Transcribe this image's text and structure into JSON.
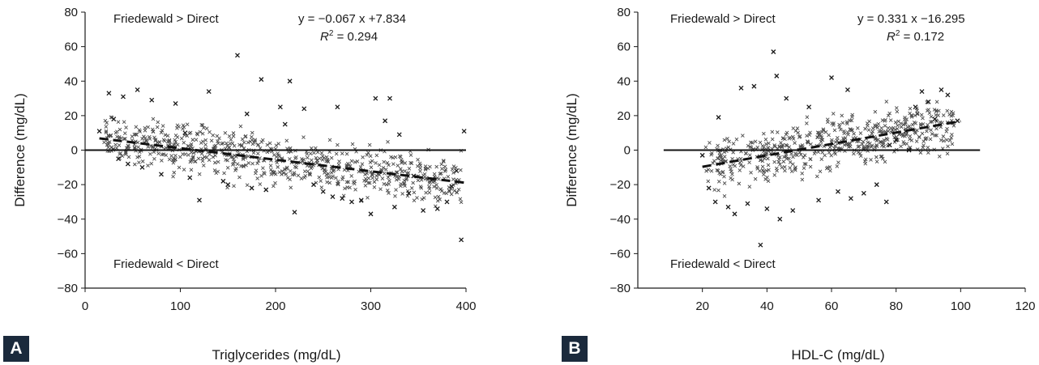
{
  "chart_data": [
    {
      "panel_label": "A",
      "type": "scatter",
      "xlabel": "Triglycerides (mg/dL)",
      "ylabel": "Difference (mg/dL)",
      "xlim": [
        0,
        400
      ],
      "ylim": [
        -80,
        80
      ],
      "xticks": [
        "0",
        "100",
        "200",
        "300",
        "400"
      ],
      "yticks": [
        "80",
        "60",
        "40",
        "20",
        "0",
        "−20",
        "−40",
        "−60",
        "−80"
      ],
      "annotations": {
        "upper": "Friedewald > Direct",
        "lower": "Friedewald < Direct",
        "equation": "y = −0.067 x +7.834",
        "r2_symbol": "R",
        "r2_exp": "2",
        "r2_value": " = 0.294"
      },
      "trendline": {
        "style": "dashed",
        "slope": -0.067,
        "intercept": 7.834,
        "x_range": [
          15,
          400
        ]
      },
      "reference_line": {
        "y": 0
      },
      "points_x": [
        160,
        185,
        215,
        305,
        265,
        55,
        25,
        40,
        70,
        95,
        130,
        205,
        320,
        230,
        170,
        398,
        330,
        315,
        210,
        105,
        250,
        280,
        355,
        370,
        385,
        395,
        120,
        60,
        45,
        35,
        15,
        150,
        145,
        175,
        190,
        240,
        290,
        340,
        300,
        260,
        220,
        110,
        80,
        30,
        380,
        390,
        365,
        345,
        325,
        270
      ],
      "points_y": [
        55,
        41,
        40,
        30,
        25,
        35,
        33,
        31,
        29,
        27,
        34,
        25,
        30,
        24,
        21,
        11,
        9,
        17,
        15,
        10,
        -24,
        -30,
        -35,
        -34,
        -21,
        -52,
        -29,
        -10,
        -8,
        -5,
        11,
        -20,
        -18,
        -22,
        -23,
        -20,
        -29,
        -25,
        -37,
        -27,
        -36,
        -16,
        -14,
        18,
        -30,
        -12,
        -17,
        -15,
        -33,
        -28
      ],
      "cloud": {
        "x_range": [
          20,
          395
        ],
        "band_halfwidth": 17,
        "count": 720
      }
    },
    {
      "panel_label": "B",
      "type": "scatter",
      "xlabel": "HDL-C (mg/dL)",
      "ylabel": "Difference (mg/dL)",
      "xlim": [
        0,
        120
      ],
      "ylim": [
        -80,
        80
      ],
      "xticks": [
        "20",
        "40",
        "60",
        "80",
        "100",
        "120"
      ],
      "yticks": [
        "80",
        "60",
        "40",
        "20",
        "0",
        "−20",
        "−40",
        "−60",
        "−80"
      ],
      "annotations": {
        "upper": "Friedewald > Direct",
        "lower": "Friedewald < Direct",
        "equation": "y = 0.331 x −16.295",
        "r2_symbol": "R",
        "r2_exp": "2",
        "r2_value": " = 0.172"
      },
      "trendline": {
        "style": "dashed",
        "slope": 0.331,
        "intercept": -16.295,
        "x_range": [
          20,
          100
        ]
      },
      "reference_line": {
        "y": 0
      },
      "points_x": [
        42,
        43,
        60,
        65,
        32,
        36,
        46,
        53,
        88,
        94,
        96,
        90,
        99,
        86,
        83,
        78,
        20,
        22,
        24,
        38,
        44,
        30,
        34,
        40,
        56,
        62,
        70,
        77,
        74,
        28,
        48,
        66,
        84,
        92,
        25,
        80
      ],
      "points_y": [
        57,
        43,
        42,
        35,
        36,
        37,
        30,
        25,
        34,
        35,
        32,
        28,
        17,
        25,
        11,
        3,
        -3,
        -22,
        -30,
        -55,
        -40,
        -37,
        -31,
        -34,
        -29,
        -24,
        -25,
        -30,
        -20,
        -33,
        -35,
        -28,
        0,
        18,
        19,
        6
      ],
      "cloud": {
        "x_range": [
          21,
          98
        ],
        "band_halfwidth": 18,
        "count": 560
      }
    }
  ]
}
